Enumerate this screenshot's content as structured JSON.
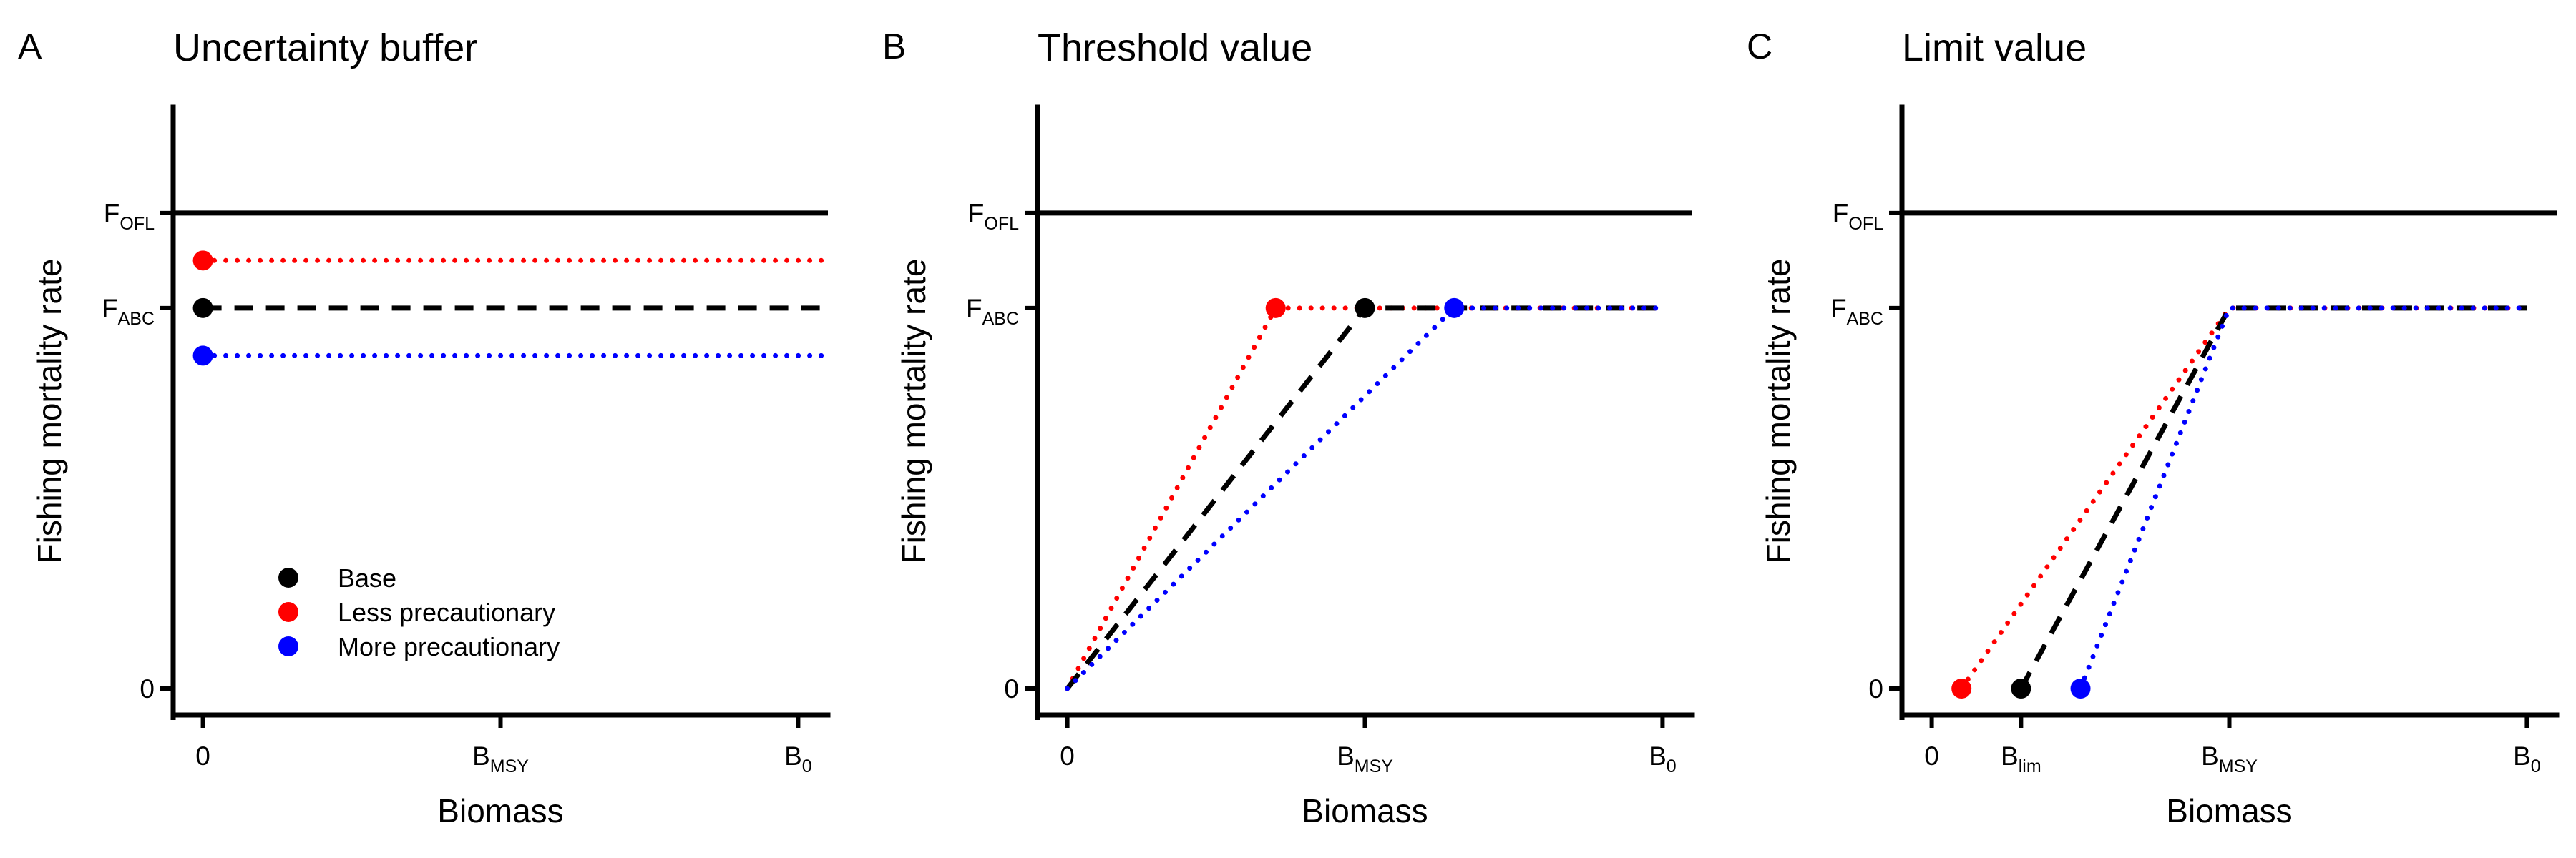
{
  "colors": {
    "base": "#000000",
    "less": "#ff0000",
    "more": "#0000ff",
    "frame": "#000000"
  },
  "legend": {
    "items": [
      {
        "label": "Base",
        "color": "#000000"
      },
      {
        "label": "Less precautionary",
        "color": "#ff0000"
      },
      {
        "label": "More precautionary",
        "color": "#0000ff"
      }
    ]
  },
  "chart_data": [
    {
      "panel": "A",
      "title": "Uncertainty buffer",
      "type": "line",
      "xlabel": "Biomass",
      "ylabel": "Fishing mortality rate",
      "xlim": [
        -0.05,
        1.05
      ],
      "ylim": [
        -0.05,
        1.1
      ],
      "x_ticks": [
        {
          "value": 0,
          "label": "0",
          "sub": ""
        },
        {
          "value": 0.5,
          "label": "B",
          "sub": "MSY"
        },
        {
          "value": 1,
          "label": "B",
          "sub": "0"
        }
      ],
      "y_ticks": [
        {
          "value": 0,
          "label": "0",
          "sub": ""
        },
        {
          "value": 0.72,
          "label": "F",
          "sub": "ABC"
        },
        {
          "value": 0.9,
          "label": "F",
          "sub": "OFL"
        }
      ],
      "ofl_line": 0.9,
      "series": [
        {
          "key": "less",
          "style": "dotted",
          "points": [
            [
              0,
              0.81
            ],
            [
              1.05,
              0.81
            ]
          ],
          "markers": [
            [
              0,
              0.81
            ]
          ]
        },
        {
          "key": "base",
          "style": "dashed",
          "points": [
            [
              0,
              0.72
            ],
            [
              1.05,
              0.72
            ]
          ],
          "markers": [
            [
              0,
              0.72
            ]
          ]
        },
        {
          "key": "more",
          "style": "dotted",
          "points": [
            [
              0,
              0.63
            ],
            [
              1.05,
              0.63
            ]
          ],
          "markers": [
            [
              0,
              0.63
            ]
          ]
        }
      ],
      "show_legend": true
    },
    {
      "panel": "B",
      "title": "Threshold value",
      "type": "line",
      "xlabel": "Biomass",
      "ylabel": "Fishing mortality rate",
      "xlim": [
        -0.05,
        1.05
      ],
      "ylim": [
        -0.05,
        1.1
      ],
      "x_ticks": [
        {
          "value": 0,
          "label": "0",
          "sub": ""
        },
        {
          "value": 0.5,
          "label": "B",
          "sub": "MSY"
        },
        {
          "value": 1,
          "label": "B",
          "sub": "0"
        }
      ],
      "y_ticks": [
        {
          "value": 0,
          "label": "0",
          "sub": ""
        },
        {
          "value": 0.72,
          "label": "F",
          "sub": "ABC"
        },
        {
          "value": 0.9,
          "label": "F",
          "sub": "OFL"
        }
      ],
      "ofl_line": 0.9,
      "series": [
        {
          "key": "less",
          "style": "dotted",
          "points": [
            [
              0,
              0
            ],
            [
              0.35,
              0.72
            ],
            [
              1,
              0.72
            ]
          ],
          "markers": [
            [
              0.35,
              0.72
            ]
          ]
        },
        {
          "key": "base",
          "style": "dashed",
          "points": [
            [
              0,
              0
            ],
            [
              0.5,
              0.72
            ],
            [
              1,
              0.72
            ]
          ],
          "markers": [
            [
              0.5,
              0.72
            ]
          ]
        },
        {
          "key": "more",
          "style": "dotted",
          "points": [
            [
              0,
              0
            ],
            [
              0.65,
              0.72
            ],
            [
              1,
              0.72
            ]
          ],
          "markers": [
            [
              0.65,
              0.72
            ]
          ]
        }
      ],
      "show_legend": false
    },
    {
      "panel": "C",
      "title": "Limit value",
      "type": "line",
      "xlabel": "Biomass",
      "ylabel": "Fishing mortality rate",
      "xlim": [
        -0.05,
        1.05
      ],
      "ylim": [
        -0.05,
        1.1
      ],
      "x_ticks": [
        {
          "value": 0,
          "label": "0",
          "sub": ""
        },
        {
          "value": 0.15,
          "label": "B",
          "sub": "lim"
        },
        {
          "value": 0.5,
          "label": "B",
          "sub": "MSY"
        },
        {
          "value": 1,
          "label": "B",
          "sub": "0"
        }
      ],
      "y_ticks": [
        {
          "value": 0,
          "label": "0",
          "sub": ""
        },
        {
          "value": 0.72,
          "label": "F",
          "sub": "ABC"
        },
        {
          "value": 0.9,
          "label": "F",
          "sub": "OFL"
        }
      ],
      "ofl_line": 0.9,
      "series": [
        {
          "key": "less",
          "style": "dotted",
          "points": [
            [
              0.05,
              0
            ],
            [
              0.5,
              0.72
            ],
            [
              1,
              0.72
            ]
          ],
          "markers": [
            [
              0.05,
              0
            ]
          ]
        },
        {
          "key": "base",
          "style": "dashed",
          "points": [
            [
              0.15,
              0
            ],
            [
              0.5,
              0.72
            ],
            [
              1,
              0.72
            ]
          ],
          "markers": [
            [
              0.15,
              0
            ]
          ]
        },
        {
          "key": "more",
          "style": "dotted",
          "points": [
            [
              0.25,
              0
            ],
            [
              0.5,
              0.72
            ],
            [
              1,
              0.72
            ]
          ],
          "markers": [
            [
              0.25,
              0
            ]
          ]
        }
      ],
      "show_legend": false
    }
  ]
}
